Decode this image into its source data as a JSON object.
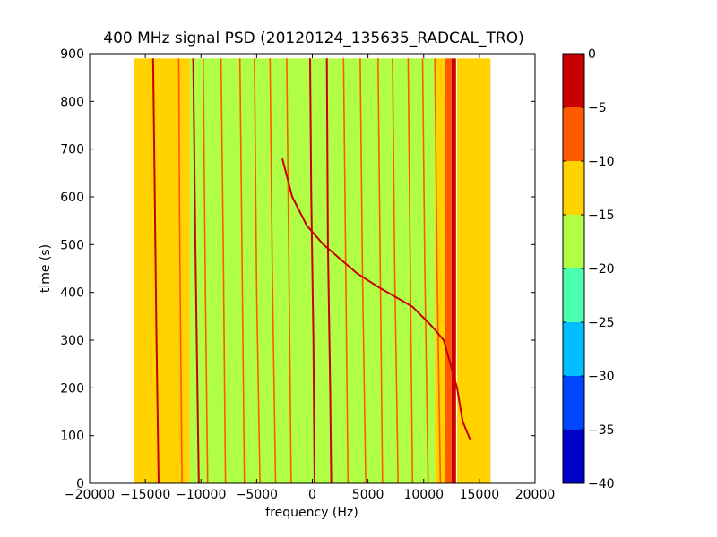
{
  "chart_data": {
    "type": "heatmap",
    "title": "400 MHz signal PSD (20120124_135635_RADCAL_TRO)",
    "xlabel": "frequency (Hz)",
    "ylabel": "time (s)",
    "xlim": [
      -20000,
      20000
    ],
    "ylim": [
      0,
      900
    ],
    "x_ticks": [
      -20000,
      -15000,
      -10000,
      -5000,
      0,
      5000,
      10000,
      15000,
      20000
    ],
    "y_ticks": [
      0,
      100,
      200,
      300,
      400,
      500,
      600,
      700,
      800,
      900
    ],
    "data_extent": {
      "x": [
        -16000,
        16000
      ],
      "y": [
        0,
        890
      ]
    },
    "background_regions": [
      {
        "x": [
          -16000,
          -11000
        ],
        "level": -12
      },
      {
        "x": [
          -11000,
          11000
        ],
        "level": -17
      },
      {
        "x": [
          11000,
          12000
        ],
        "level": -12
      },
      {
        "x": [
          13000,
          16000
        ],
        "level": -12
      }
    ],
    "lines": [
      {
        "points": [
          [
            -14300,
            890
          ],
          [
            -14200,
            700
          ],
          [
            -14000,
            300
          ],
          [
            -13800,
            0
          ]
        ],
        "level": -2
      },
      {
        "points": [
          [
            -12000,
            890
          ],
          [
            -11900,
            500
          ],
          [
            -11700,
            0
          ]
        ],
        "level": -7
      },
      {
        "points": [
          [
            -10700,
            890
          ],
          [
            -10500,
            500
          ],
          [
            -10200,
            0
          ]
        ],
        "level": -4
      },
      {
        "points": [
          [
            -9800,
            890
          ],
          [
            -9600,
            400
          ],
          [
            -9400,
            0
          ]
        ],
        "level": -8
      },
      {
        "points": [
          [
            -8200,
            890
          ],
          [
            -8000,
            500
          ],
          [
            -7800,
            0
          ]
        ],
        "level": -7
      },
      {
        "points": [
          [
            -6500,
            890
          ],
          [
            -6300,
            450
          ],
          [
            -6100,
            0
          ]
        ],
        "level": -5
      },
      {
        "points": [
          [
            -5200,
            890
          ],
          [
            -5000,
            400
          ],
          [
            -4700,
            0
          ]
        ],
        "level": -8
      },
      {
        "points": [
          [
            -3800,
            890
          ],
          [
            -3600,
            450
          ],
          [
            -3300,
            0
          ]
        ],
        "level": -7
      },
      {
        "points": [
          [
            -2300,
            890
          ],
          [
            -2100,
            450
          ],
          [
            -1900,
            0
          ]
        ],
        "level": -9
      },
      {
        "points": [
          [
            -200,
            890
          ],
          [
            -100,
            600
          ],
          [
            100,
            300
          ],
          [
            200,
            0
          ]
        ],
        "level": -4
      },
      {
        "points": [
          [
            1300,
            890
          ],
          [
            1400,
            500
          ],
          [
            1600,
            200
          ],
          [
            1700,
            0
          ]
        ],
        "level": -2
      },
      {
        "points": [
          [
            2800,
            890
          ],
          [
            3000,
            450
          ],
          [
            3200,
            0
          ]
        ],
        "level": -8
      },
      {
        "points": [
          [
            4300,
            890
          ],
          [
            4500,
            450
          ],
          [
            4800,
            0
          ]
        ],
        "level": -7
      },
      {
        "points": [
          [
            5900,
            890
          ],
          [
            6100,
            450
          ],
          [
            6300,
            0
          ]
        ],
        "level": -8
      },
      {
        "points": [
          [
            7200,
            890
          ],
          [
            7400,
            450
          ],
          [
            7700,
            0
          ]
        ],
        "level": -7
      },
      {
        "points": [
          [
            8600,
            890
          ],
          [
            8800,
            450
          ],
          [
            9000,
            0
          ]
        ],
        "level": -7
      },
      {
        "points": [
          [
            9900,
            890
          ],
          [
            10100,
            450
          ],
          [
            10400,
            0
          ]
        ],
        "level": -8
      },
      {
        "points": [
          [
            11000,
            890
          ],
          [
            11200,
            450
          ],
          [
            11500,
            0
          ]
        ],
        "level": -6
      },
      {
        "points": [
          [
            -2700,
            680
          ],
          [
            -1800,
            600
          ],
          [
            -500,
            540
          ],
          [
            1000,
            500
          ],
          [
            4000,
            440
          ],
          [
            6000,
            410
          ],
          [
            9000,
            370
          ],
          [
            10700,
            330
          ],
          [
            11800,
            300
          ],
          [
            13000,
            200
          ],
          [
            13500,
            130
          ],
          [
            14200,
            90
          ]
        ],
        "level": -4
      }
    ],
    "bands": [
      {
        "x": [
          11900,
          12500
        ],
        "level": -5
      },
      {
        "x": [
          12500,
          12900
        ],
        "level": -2
      }
    ],
    "colorbar": {
      "ticks": [
        0,
        -5,
        -10,
        -15,
        -20,
        -25,
        -30,
        -35,
        -40
      ],
      "levels": [
        {
          "range": [
            -40,
            -35
          ],
          "color": "#0000c8"
        },
        {
          "range": [
            -35,
            -30
          ],
          "color": "#0046ff"
        },
        {
          "range": [
            -30,
            -25
          ],
          "color": "#00beff"
        },
        {
          "range": [
            -25,
            -20
          ],
          "color": "#4cffb0"
        },
        {
          "range": [
            -20,
            -15
          ],
          "color": "#b0ff46"
        },
        {
          "range": [
            -15,
            -10
          ],
          "color": "#ffd200"
        },
        {
          "range": [
            -10,
            -5
          ],
          "color": "#ff5a00"
        },
        {
          "range": [
            -5,
            0
          ],
          "color": "#c80000"
        }
      ]
    }
  }
}
